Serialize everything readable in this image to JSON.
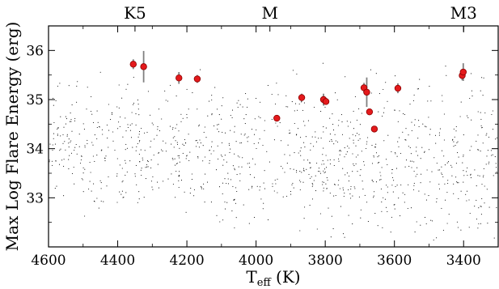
{
  "chart_data": {
    "type": "scatter",
    "title": "",
    "xlabel": "T",
    "xlabel_subscript": "eff",
    "xlabel_unit": " (K)",
    "ylabel": "Max Log Flare Energy (erg)",
    "x_reversed": true,
    "xlim": [
      4600,
      3300
    ],
    "ylim": [
      32.0,
      36.5
    ],
    "x_ticks": [
      4600,
      4400,
      4200,
      4000,
      3800,
      3600,
      3400
    ],
    "y_ticks": [
      33,
      34,
      35,
      36
    ],
    "grid": false,
    "spectral_type_axis": [
      {
        "label": "K5",
        "teff": 4350
      },
      {
        "label": "M",
        "teff": 3960
      },
      {
        "label": "M3",
        "teff": 3400
      }
    ],
    "colors": {
      "marker_fill": "#e41a1c",
      "marker_edge": "#8b0000",
      "errorbar": "#808080",
      "background_points": "#000000"
    },
    "series": [
      {
        "marker": "circle",
        "points": [
          {
            "x": 4355,
            "y": 35.72,
            "yerr": 0.1
          },
          {
            "x": 4325,
            "y": 35.67,
            "yerr": 0.32
          },
          {
            "x": 4223,
            "y": 35.44,
            "yerr": 0.12
          },
          {
            "x": 4170,
            "y": 35.42,
            "yerr": 0.08
          },
          {
            "x": 3940,
            "y": 34.62,
            "yerr": 0.04
          },
          {
            "x": 3868,
            "y": 35.04,
            "yerr": 0.08
          },
          {
            "x": 3805,
            "y": 35.0,
            "yerr": 0.12
          },
          {
            "x": 3798,
            "y": 34.96,
            "yerr": 0.06
          },
          {
            "x": 3688,
            "y": 35.24,
            "yerr": 0.1
          },
          {
            "x": 3680,
            "y": 35.15,
            "yerr": 0.3
          },
          {
            "x": 3672,
            "y": 34.75,
            "yerr": 0.05
          },
          {
            "x": 3658,
            "y": 34.4,
            "yerr": 0.05
          },
          {
            "x": 3590,
            "y": 35.23,
            "yerr": 0.1
          },
          {
            "x": 3404,
            "y": 35.49,
            "yerr": 0.1
          },
          {
            "x": 3401,
            "y": 35.56,
            "yerr": 0.18
          }
        ]
      }
    ]
  }
}
